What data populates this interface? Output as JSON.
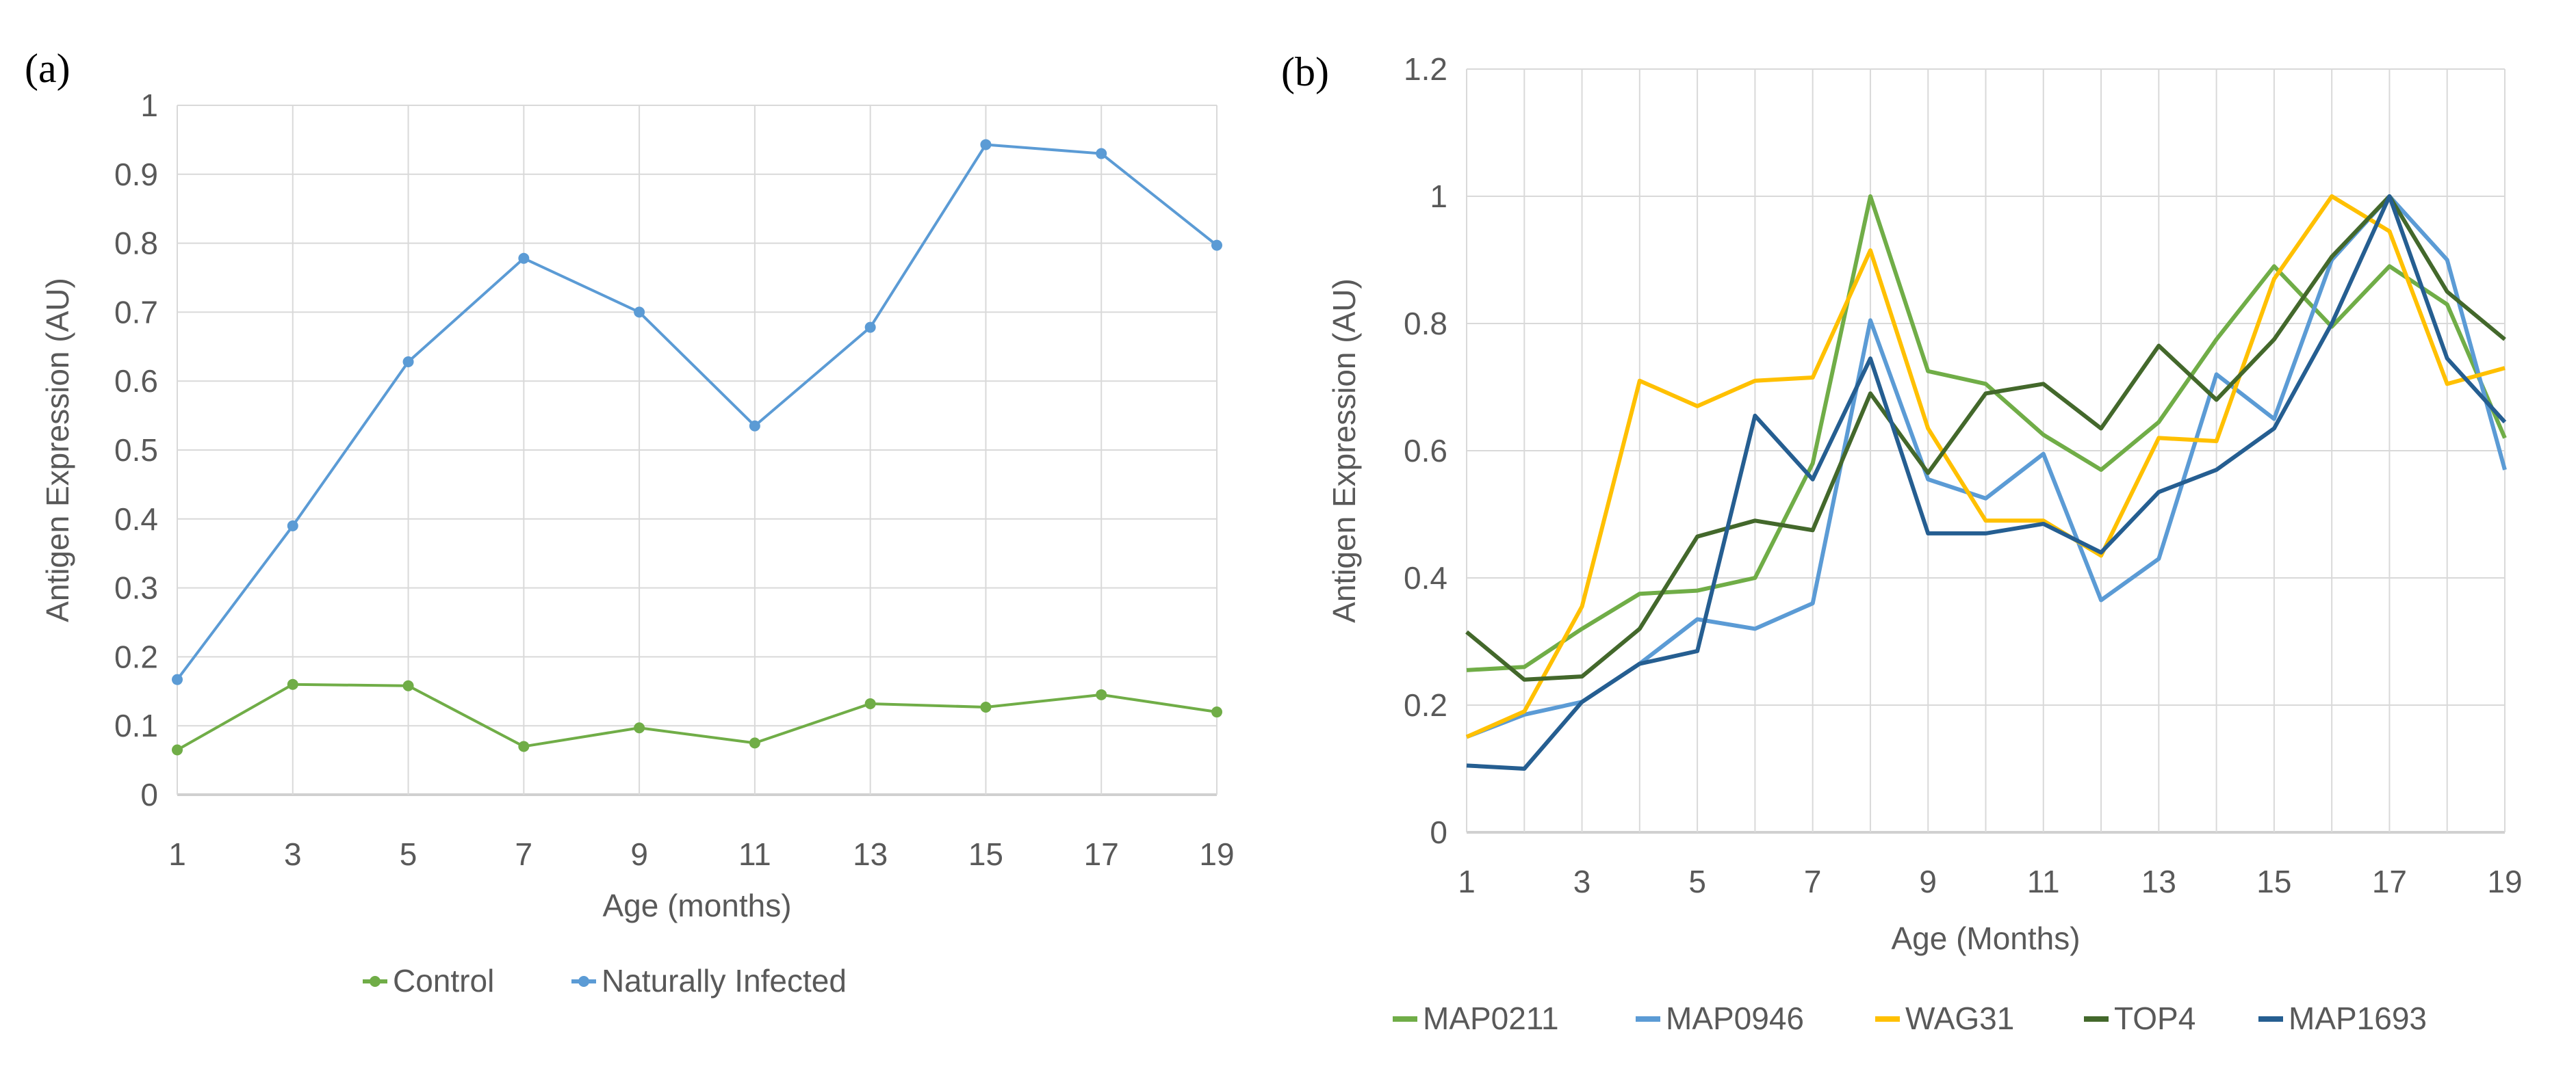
{
  "chart_data": [
    {
      "type": "line",
      "panel_label": "(a)",
      "title": "",
      "xlabel": "Age (months)",
      "ylabel": "Antigen Expression (AU)",
      "x": [
        1,
        3,
        5,
        7,
        9,
        11,
        13,
        15,
        17,
        19
      ],
      "x_tick_labels": [
        "1",
        "3",
        "5",
        "7",
        "9",
        "11",
        "13",
        "15",
        "17",
        "19"
      ],
      "ylim": [
        0,
        1
      ],
      "y_tick_labels": [
        "0",
        "0.1",
        "0.2",
        "0.3",
        "0.4",
        "0.5",
        "0.6",
        "0.7",
        "0.8",
        "0.9",
        "1"
      ],
      "grid": true,
      "markers": true,
      "legend_placement": "bottom",
      "series": [
        {
          "name": "Control",
          "color": "#70ad47",
          "values": [
            0.065,
            0.16,
            0.158,
            0.07,
            0.097,
            0.075,
            0.132,
            0.127,
            0.145,
            0.12
          ]
        },
        {
          "name": "Naturally Infected",
          "color": "#5b9bd5",
          "values": [
            0.167,
            0.39,
            0.628,
            0.778,
            0.7,
            0.535,
            0.678,
            0.943,
            0.93,
            0.797
          ]
        }
      ]
    },
    {
      "type": "line",
      "panel_label": "(b)",
      "title": "",
      "xlabel": "Age (Months)",
      "ylabel": "Antigen Expression (AU)",
      "x": [
        1,
        2,
        3,
        4,
        5,
        6,
        7,
        8,
        9,
        10,
        11,
        12,
        13,
        14,
        15,
        16,
        17,
        18,
        19
      ],
      "x_tick_labels": [
        "1",
        "3",
        "5",
        "7",
        "9",
        "11",
        "13",
        "15",
        "17",
        "19"
      ],
      "ylim": [
        0,
        1.2
      ],
      "y_tick_labels": [
        "0",
        "0.2",
        "0.4",
        "0.6",
        "0.8",
        "1",
        "1.2"
      ],
      "grid": true,
      "markers": false,
      "legend_placement": "bottom",
      "series": [
        {
          "name": "MAP0211",
          "color": "#70ad47",
          "values": [
            0.255,
            0.26,
            0.32,
            0.375,
            0.38,
            0.4,
            0.58,
            1.0,
            0.725,
            0.705,
            0.625,
            0.57,
            0.645,
            0.775,
            0.89,
            0.795,
            0.89,
            0.83,
            0.62
          ]
        },
        {
          "name": "MAP0946",
          "color": "#5b9bd5",
          "values": [
            0.15,
            0.185,
            0.205,
            0.265,
            0.335,
            0.32,
            0.36,
            0.805,
            0.555,
            0.525,
            0.595,
            0.365,
            0.43,
            0.72,
            0.65,
            0.9,
            1.0,
            0.9,
            0.57
          ]
        },
        {
          "name": "WAG31",
          "color": "#ffc000",
          "values": [
            0.15,
            0.19,
            0.355,
            0.71,
            0.67,
            0.71,
            0.715,
            0.915,
            0.635,
            0.49,
            0.49,
            0.435,
            0.62,
            0.615,
            0.87,
            1.0,
            0.945,
            0.705,
            0.73
          ]
        },
        {
          "name": "TOP4",
          "color": "#43682b",
          "values": [
            0.315,
            0.24,
            0.245,
            0.32,
            0.465,
            0.49,
            0.475,
            0.69,
            0.565,
            0.69,
            0.705,
            0.635,
            0.765,
            0.68,
            0.775,
            0.905,
            1.0,
            0.85,
            0.775
          ]
        },
        {
          "name": "MAP1693",
          "color": "#255e91",
          "values": [
            0.105,
            0.1,
            0.205,
            0.265,
            0.285,
            0.655,
            0.555,
            0.745,
            0.47,
            0.47,
            0.485,
            0.44,
            0.535,
            0.57,
            0.635,
            0.8,
            1.0,
            0.745,
            0.645
          ]
        }
      ]
    }
  ]
}
